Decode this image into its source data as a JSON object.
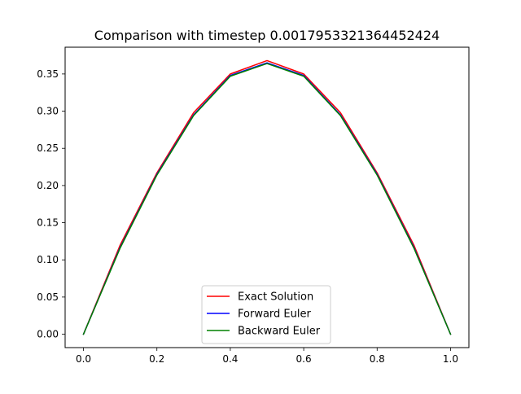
{
  "chart_data": {
    "type": "line",
    "title": "Comparison with timestep 0.0017953321364452424",
    "xlabel": "",
    "ylabel": "",
    "xlim": [
      -0.05,
      1.05
    ],
    "ylim": [
      -0.018,
      0.386
    ],
    "xticks": [
      0.0,
      0.2,
      0.4,
      0.6,
      0.8,
      1.0
    ],
    "xtick_labels": [
      "0.0",
      "0.2",
      "0.4",
      "0.6",
      "0.8",
      "1.0"
    ],
    "yticks": [
      0.0,
      0.05,
      0.1,
      0.15,
      0.2,
      0.25,
      0.3,
      0.35
    ],
    "ytick_labels": [
      "0.00",
      "0.05",
      "0.10",
      "0.15",
      "0.20",
      "0.25",
      "0.30",
      "0.35"
    ],
    "grid": false,
    "legend_position": "lower-center",
    "x": [
      0.0,
      0.1,
      0.2,
      0.3,
      0.4,
      0.5,
      0.6,
      0.7,
      0.8,
      0.9,
      1.0
    ],
    "series": [
      {
        "name": "Exact Solution",
        "color": "#ff0000",
        "values": [
          0.0,
          0.12,
          0.217,
          0.298,
          0.35,
          0.368,
          0.35,
          0.298,
          0.217,
          0.12,
          0.0
        ]
      },
      {
        "name": "Forward Euler",
        "color": "#0000ff",
        "values": [
          0.0,
          0.117,
          0.215,
          0.295,
          0.348,
          0.365,
          0.348,
          0.295,
          0.215,
          0.117,
          0.0
        ]
      },
      {
        "name": "Backward Euler",
        "color": "#008000",
        "values": [
          0.0,
          0.116,
          0.214,
          0.294,
          0.347,
          0.364,
          0.347,
          0.294,
          0.214,
          0.116,
          0.0
        ]
      }
    ]
  }
}
